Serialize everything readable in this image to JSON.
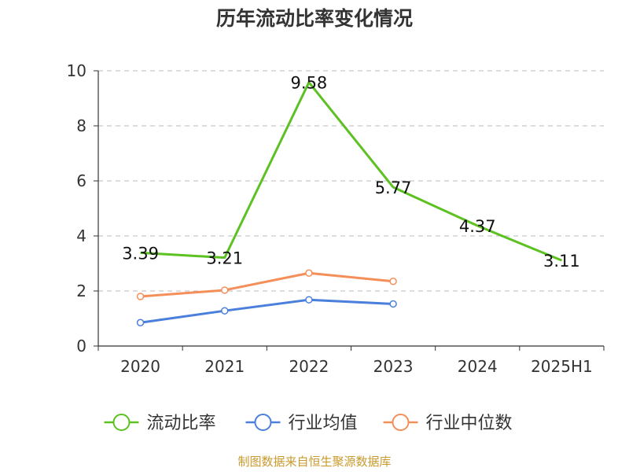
{
  "chart_data": {
    "type": "line",
    "title": "历年流动比率变化情况",
    "categories": [
      "2020",
      "2021",
      "2022",
      "2023",
      "2024",
      "2025H1"
    ],
    "ylim": [
      0,
      10
    ],
    "yticks": [
      0,
      2,
      4,
      6,
      8,
      10
    ],
    "grid": true,
    "legend_position": "bottom",
    "series": [
      {
        "name": "流动比率",
        "color": "#5cc121",
        "values": [
          3.39,
          3.21,
          9.58,
          5.77,
          4.37,
          3.11
        ],
        "labels": [
          "3.39",
          "3.21",
          "9.58",
          "5.77",
          "4.37",
          "3.11"
        ],
        "markers": false
      },
      {
        "name": "行业均值",
        "color": "#4a7fdc",
        "values": [
          0.85,
          1.28,
          1.68,
          1.53,
          null,
          null
        ],
        "markers": true
      },
      {
        "name": "行业中位数",
        "color": "#f58f5a",
        "values": [
          1.8,
          2.03,
          2.65,
          2.35,
          null,
          null
        ],
        "markers": true
      }
    ]
  },
  "source_text": "制图数据来自恒生聚源数据库",
  "source_color": "#c99a2e"
}
